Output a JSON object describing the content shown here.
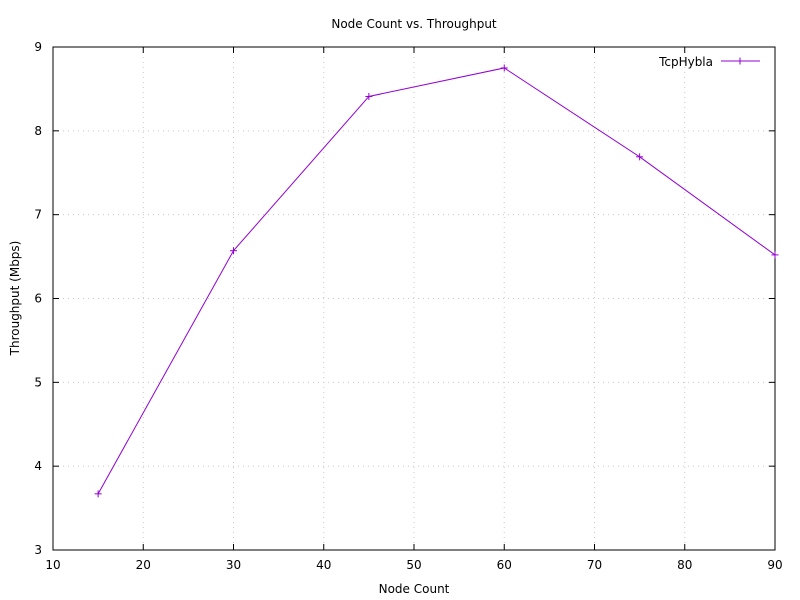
{
  "chart_data": {
    "type": "line",
    "title": "Node Count vs. Throughput",
    "xlabel": "Node Count",
    "ylabel": "Throughput (Mbps)",
    "xlim": [
      10,
      90
    ],
    "ylim": [
      3,
      9
    ],
    "xticks": [
      10,
      20,
      30,
      40,
      50,
      60,
      70,
      80,
      90
    ],
    "yticks": [
      3,
      4,
      5,
      6,
      7,
      8,
      9
    ],
    "grid": true,
    "legend_position": "top-right",
    "series": [
      {
        "name": "TcpHybla",
        "color": "#9400d3",
        "marker": "plus",
        "x": [
          15,
          30,
          45,
          60,
          75,
          90
        ],
        "y": [
          3.67,
          6.57,
          8.41,
          8.75,
          7.69,
          6.52
        ]
      }
    ]
  }
}
